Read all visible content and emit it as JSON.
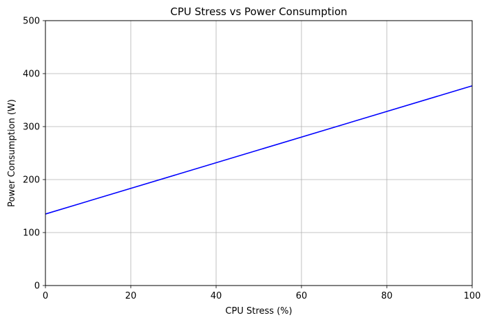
{
  "chart_data": {
    "type": "line",
    "title": "CPU Stress vs Power Consumption",
    "xlabel": "CPU Stress (%)",
    "ylabel": "Power Consumption (W)",
    "xlim": [
      0,
      100
    ],
    "ylim": [
      0,
      500
    ],
    "x_ticks": [
      0,
      20,
      40,
      60,
      80,
      100
    ],
    "y_ticks": [
      0,
      100,
      200,
      300,
      400,
      500
    ],
    "grid": true,
    "series": [
      {
        "color": "#0000ff",
        "x": [
          0,
          100
        ],
        "y": [
          135,
          377
        ]
      }
    ]
  }
}
